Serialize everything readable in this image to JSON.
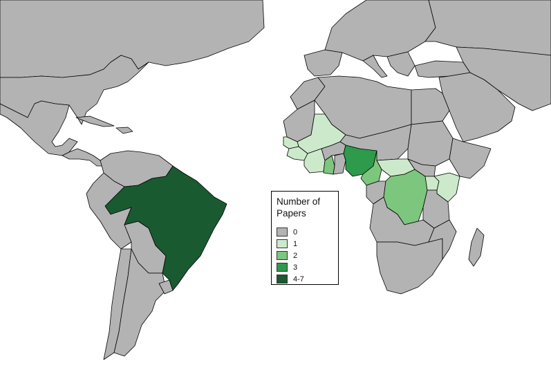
{
  "colors": {
    "ocean": "#ffffff",
    "c0": "#b3b3b3",
    "c1": "#cceacb",
    "c2": "#7cc67d",
    "c3": "#2d9a4c",
    "c47": "#1a5a30"
  },
  "legend": {
    "title": "Number of Papers",
    "items": [
      {
        "label": "0",
        "class": "c0"
      },
      {
        "label": "1",
        "class": "c1"
      },
      {
        "label": "2",
        "class": "c2"
      },
      {
        "label": "3",
        "class": "c3"
      },
      {
        "label": "4-7",
        "class": "c47"
      }
    ]
  },
  "countries": [
    {
      "name": "Brazil",
      "class": "c47"
    },
    {
      "name": "Nigeria",
      "class": "c3"
    },
    {
      "name": "Ghana",
      "class": "c2"
    },
    {
      "name": "Cameroon",
      "class": "c2"
    },
    {
      "name": "DR Congo",
      "class": "c2"
    },
    {
      "name": "Mali",
      "class": "c1"
    },
    {
      "name": "Senegal",
      "class": "c1"
    },
    {
      "name": "Guinea",
      "class": "c1"
    },
    {
      "name": "Côte d'Ivoire",
      "class": "c1"
    },
    {
      "name": "Central African Republic",
      "class": "c1"
    },
    {
      "name": "Gabon",
      "class": "c1"
    },
    {
      "name": "Uganda",
      "class": "c1"
    },
    {
      "name": "Kenya",
      "class": "c1"
    }
  ]
}
